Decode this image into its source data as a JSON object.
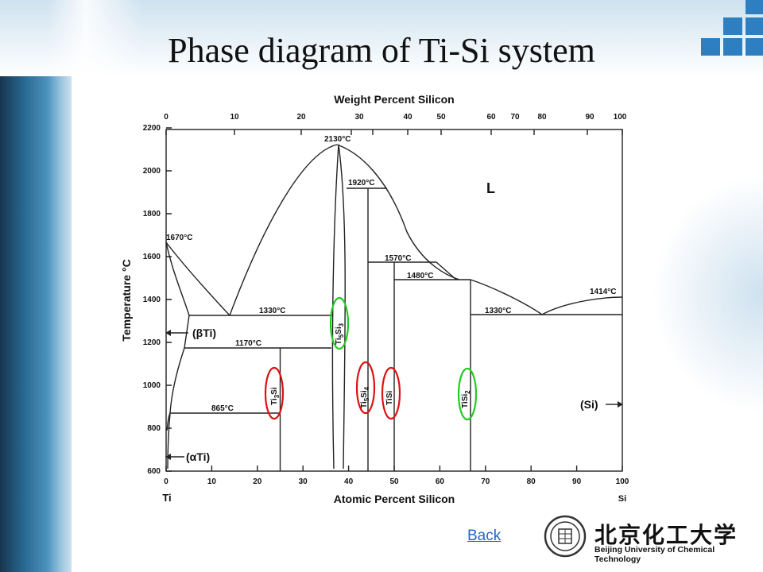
{
  "slide": {
    "title": "Phase diagram of Ti-Si system",
    "back_label": "Back",
    "logo_cn": "北京化工大学",
    "logo_en": "Beijing University of Chemical Technology"
  },
  "diagram": {
    "top_axis_title": "Weight Percent Silicon",
    "bottom_axis_title": "Atomic Percent Silicon",
    "y_axis_title": "Temperature °C",
    "left_end_label": "Ti",
    "right_end_label": "Si",
    "top_ticks": [
      "0",
      "10",
      "20",
      "30",
      "40",
      "50",
      "60",
      "70",
      "80",
      "90",
      "100"
    ],
    "bottom_ticks": [
      "0",
      "10",
      "20",
      "30",
      "40",
      "50",
      "60",
      "70",
      "80",
      "90",
      "100"
    ],
    "y_ticks": [
      "600",
      "800",
      "1000",
      "1200",
      "1400",
      "1600",
      "1800",
      "2000",
      "2200"
    ],
    "phase_liquid": "L",
    "phase_beta_ti": "(βTi)",
    "phase_alpha_ti": "(αTi)",
    "phase_si": "(Si)",
    "temperatures": {
      "t2130": "2130°C",
      "t1920": "1920°C",
      "t1670": "1670°C",
      "t1570": "1570°C",
      "t1480": "1480°C",
      "t1414": "1414°C",
      "t1330_left": "1330°C",
      "t1330_right": "1330°C",
      "t1170": "1170°C",
      "t865": "865°C"
    },
    "compounds": {
      "ti3si": {
        "main": "Ti",
        "sub1": "3",
        "mid": "Si",
        "sub2": ""
      },
      "ti5si3": {
        "main": "Ti",
        "sub1": "5",
        "mid": "Si",
        "sub2": "3"
      },
      "ti5si4": {
        "main": "Ti",
        "sub1": "5",
        "mid": "Si",
        "sub2": "4"
      },
      "tisi": {
        "main": "TiSi",
        "sub1": "",
        "mid": "",
        "sub2": ""
      },
      "tisi2": {
        "main": "TiSi",
        "sub1": "2",
        "mid": "",
        "sub2": ""
      }
    },
    "marker_colors": {
      "red": "#dd1111",
      "green": "#22cc22"
    }
  }
}
